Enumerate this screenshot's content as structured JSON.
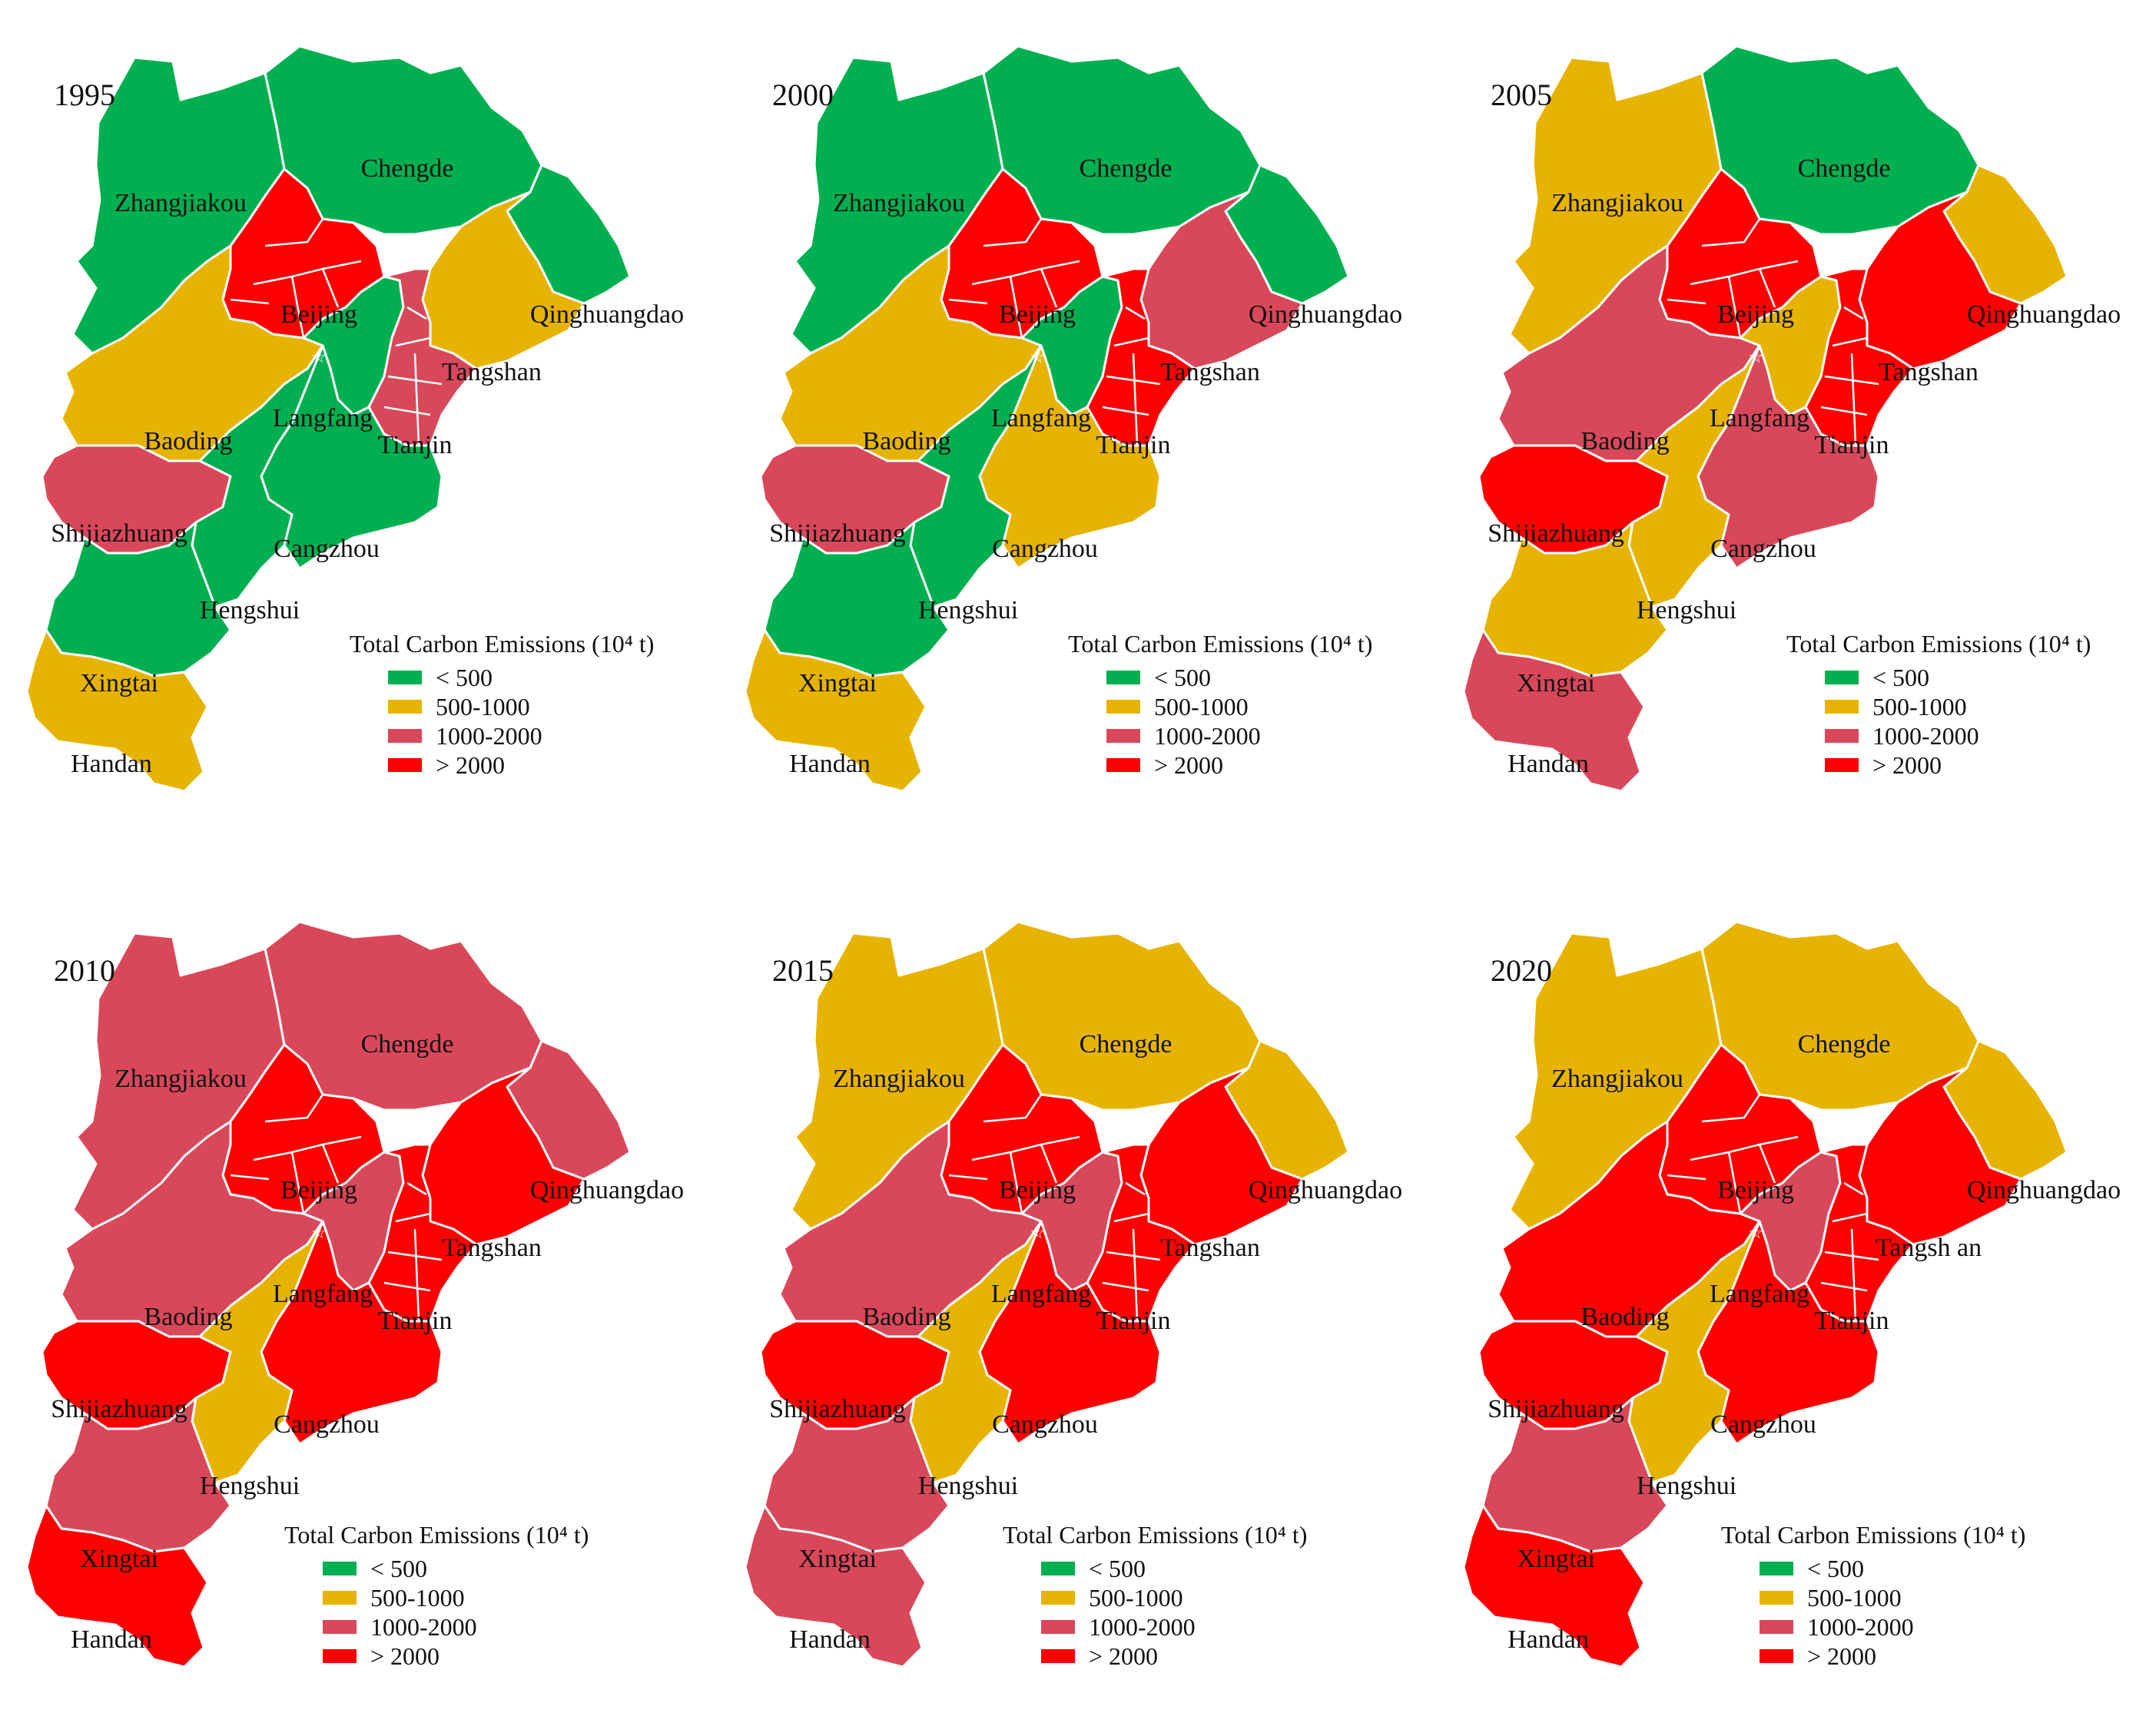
{
  "legend": {
    "title": "Total Carbon Emissions (10⁴ t)",
    "classes": [
      {
        "label": "< 500",
        "color": "#00b050"
      },
      {
        "label": "500-1000",
        "color": "#e6b400"
      },
      {
        "label": "1000-2000",
        "color": "#d9485a"
      },
      {
        "label": "> 2000",
        "color": "#ff0000"
      }
    ]
  },
  "panels": [
    {
      "year": "1995",
      "labels": {
        "Zhangjiakou": "Zhangjiakou",
        "Chengde": "Chengde",
        "Beijing": "Beijing",
        "Qinghuangdao": "Qinghuangdao",
        "Tangshan": "Tangshan",
        "Langfang": "Langfang",
        "Baoding": "Baoding",
        "Tianjin": "Tianjin",
        "Shijiazhuang": "Shijiazhuang",
        "Cangzhou": "Cangzhou",
        "Hengshui": "Hengshui",
        "Xingtai": "Xingtai",
        "Handan": "Handan"
      },
      "classes": {
        "Zhangjiakou": 0,
        "Chengde": 0,
        "Beijing": 3,
        "Qinghuangdao": 0,
        "Tangshan": 1,
        "Langfang": 0,
        "Baoding": 1,
        "Tianjin": 2,
        "Shijiazhuang": 2,
        "Cangzhou": 0,
        "Hengshui": 0,
        "Xingtai": 0,
        "Handan": 1
      }
    },
    {
      "year": "2000",
      "labels": {
        "Zhangjiakou": "Zhangjiakou",
        "Chengde": "Chengde",
        "Beijing": "Beijing",
        "Qinghuangdao": "Qinghuangdao",
        "Tangshan": "Tangshan",
        "Langfang": "Langfang",
        "Baoding": "Baoding",
        "Tianjin": "Tianjin",
        "Shijiazhuang": "Shijiazhuang",
        "Cangzhou": "Cangzhou",
        "Hengshui": "Hengshui",
        "Xingtai": "Xingtai",
        "Handan": "Handan"
      },
      "classes": {
        "Zhangjiakou": 0,
        "Chengde": 0,
        "Beijing": 3,
        "Qinghuangdao": 0,
        "Tangshan": 2,
        "Langfang": 0,
        "Baoding": 1,
        "Tianjin": 3,
        "Shijiazhuang": 2,
        "Cangzhou": 1,
        "Hengshui": 0,
        "Xingtai": 0,
        "Handan": 1
      }
    },
    {
      "year": "2005",
      "labels": {
        "Zhangjiakou": "Zhangjiakou",
        "Chengde": "Chengde",
        "Beijing": "Beijing",
        "Qinghuangdao": "Qinghuangdao",
        "Tangshan": "Tangshan",
        "Langfang": "Langfang",
        "Baoding": "Baoding",
        "Tianjin": "Tianjin",
        "Shijiazhuang": "Shijiazhuang",
        "Cangzhou": "Cangzhou",
        "Hengshui": "Hengshui",
        "Xingtai": "Xingtai",
        "Handan": "Handan"
      },
      "classes": {
        "Zhangjiakou": 1,
        "Chengde": 0,
        "Beijing": 3,
        "Qinghuangdao": 1,
        "Tangshan": 3,
        "Langfang": 1,
        "Baoding": 2,
        "Tianjin": 3,
        "Shijiazhuang": 3,
        "Cangzhou": 2,
        "Hengshui": 1,
        "Xingtai": 1,
        "Handan": 2
      }
    },
    {
      "year": "2010",
      "labels": {
        "Zhangjiakou": "Zhangjiakou",
        "Chengde": "Chengde",
        "Beijing": "Beijing",
        "Qinghuangdao": "Qinghuangdao",
        "Tangshan": "Tangshan",
        "Langfang": "Langfang",
        "Baoding": "Baoding",
        "Tianjin": "Tianjin",
        "Shijiazhuang": "Shijiazhuang",
        "Cangzhou": "Cangzhou",
        "Hengshui": "Hengshui",
        "Xingtai": "Xingtai",
        "Handan": "Handan"
      },
      "classes": {
        "Zhangjiakou": 2,
        "Chengde": 2,
        "Beijing": 3,
        "Qinghuangdao": 2,
        "Tangshan": 3,
        "Langfang": 2,
        "Baoding": 2,
        "Tianjin": 3,
        "Shijiazhuang": 3,
        "Cangzhou": 3,
        "Hengshui": 1,
        "Xingtai": 2,
        "Handan": 3
      }
    },
    {
      "year": "2015",
      "labels": {
        "Zhangjiakou": "Zhangjiakou",
        "Chengde": "Chengde",
        "Beijing": "Beijing",
        "Qinghuangdao": "Qinghuangdao",
        "Tangshan": "Tangshan",
        "Langfang": "Langfang",
        "Baoding": "Baoding",
        "Tianjin": "Tianjin",
        "Shijiazhuang": "Shijiazhuang",
        "Cangzhou": "Cangzhou",
        "Hengshui": "Hengshui",
        "Xingtai": "Xingtai",
        "Handan": "Handan"
      },
      "classes": {
        "Zhangjiakou": 1,
        "Chengde": 1,
        "Beijing": 3,
        "Qinghuangdao": 1,
        "Tangshan": 3,
        "Langfang": 2,
        "Baoding": 2,
        "Tianjin": 3,
        "Shijiazhuang": 3,
        "Cangzhou": 3,
        "Hengshui": 1,
        "Xingtai": 2,
        "Handan": 2
      }
    },
    {
      "year": "2020",
      "labels": {
        "Zhangjiakou": "Zhangjiakou",
        "Chengde": "Chengde",
        "Beijing": "Beijing",
        "Qinghuangdao": "Qinghuangdao",
        "Tangshan": "Tangsh an",
        "Langfang": "Langfang",
        "Baoding": "Baoding",
        "Tianjin": "Tianjin",
        "Shijiazhuang": "Shijiazhuang",
        "Cangzhou": "Cangzhou",
        "Hengshui": "Hengshui",
        "Xingtai": "Xingtai",
        "Handan": "Handan"
      },
      "classes": {
        "Zhangjiakou": 1,
        "Chengde": 1,
        "Beijing": 3,
        "Qinghuangdao": 1,
        "Tangshan": 3,
        "Langfang": 2,
        "Baoding": 3,
        "Tianjin": 3,
        "Shijiazhuang": 3,
        "Cangzhou": 3,
        "Hengshui": 1,
        "Xingtai": 2,
        "Handan": 3
      }
    }
  ]
}
